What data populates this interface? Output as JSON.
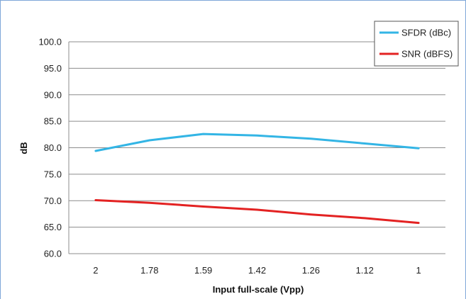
{
  "chart_data": {
    "type": "line",
    "title": "",
    "xlabel": "Input full-scale (Vpp)",
    "ylabel": "dB",
    "categories": [
      "2",
      "1.78",
      "1.59",
      "1.42",
      "1.26",
      "1.12",
      "1"
    ],
    "yticks": [
      "60.0",
      "65.0",
      "70.0",
      "75.0",
      "80.0",
      "85.0",
      "90.0",
      "95.0",
      "100.0"
    ],
    "ylim": [
      60,
      100
    ],
    "grid": true,
    "legend_position": "top-right",
    "series": [
      {
        "name": "SFDR (dBc)",
        "color": "#33b5e5",
        "values": [
          79.4,
          81.4,
          82.6,
          82.3,
          81.7,
          80.8,
          79.9
        ]
      },
      {
        "name": "SNR (dBFS)",
        "color": "#e32222",
        "values": [
          70.1,
          69.6,
          68.9,
          68.3,
          67.4,
          66.7,
          65.8
        ]
      }
    ]
  }
}
